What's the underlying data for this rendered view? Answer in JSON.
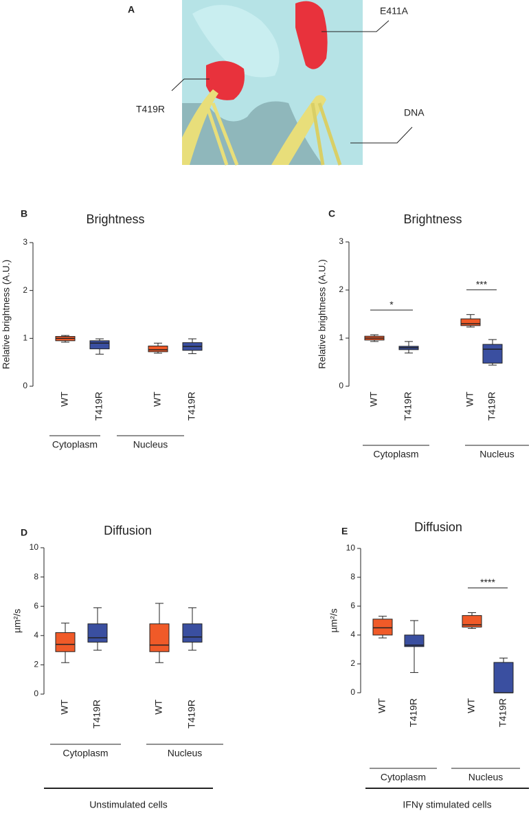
{
  "panel_a": {
    "letter": "A",
    "labels": [
      "E411A",
      "T419R",
      "DNA"
    ]
  },
  "chart_data": [
    {
      "type": "box",
      "panel": "B",
      "title": "Brightness",
      "ylabel": "Relative brightness (A.U.)",
      "ylim": [
        0,
        3
      ],
      "yticks": [
        0,
        1,
        2,
        3
      ],
      "categories": [
        "WT",
        "T419R",
        "WT",
        "T419R"
      ],
      "groups": [
        "Cytoplasm",
        "Nucleus"
      ],
      "boxes": [
        {
          "color": "#f05a28",
          "min": 0.92,
          "q1": 0.95,
          "median": 1.0,
          "q3": 1.04,
          "max": 1.06
        },
        {
          "color": "#3a4fa0",
          "min": 0.67,
          "q1": 0.78,
          "median": 0.9,
          "q3": 0.95,
          "max": 0.99
        },
        {
          "color": "#f05a28",
          "min": 0.69,
          "q1": 0.72,
          "median": 0.76,
          "q3": 0.84,
          "max": 0.9
        },
        {
          "color": "#3a4fa0",
          "min": 0.68,
          "q1": 0.75,
          "median": 0.83,
          "q3": 0.91,
          "max": 0.99
        }
      ]
    },
    {
      "type": "box",
      "panel": "C",
      "title": "Brightness",
      "ylabel": "Relative brightness (A.U.)",
      "ylim": [
        0,
        3
      ],
      "yticks": [
        0,
        1,
        2,
        3
      ],
      "categories": [
        "WT",
        "T419R",
        "WT",
        "T419R"
      ],
      "groups": [
        "Cytoplasm",
        "Nucleus"
      ],
      "significance": [
        "*",
        "***"
      ],
      "boxes": [
        {
          "color": "#f05a28",
          "min": 0.93,
          "q1": 0.96,
          "median": 1.0,
          "q3": 1.04,
          "max": 1.07
        },
        {
          "color": "#3a4fa0",
          "min": 0.69,
          "q1": 0.76,
          "median": 0.8,
          "q3": 0.83,
          "max": 0.93
        },
        {
          "color": "#f05a28",
          "min": 1.23,
          "q1": 1.26,
          "median": 1.3,
          "q3": 1.4,
          "max": 1.49
        },
        {
          "color": "#3a4fa0",
          "min": 0.44,
          "q1": 0.48,
          "median": 0.77,
          "q3": 0.87,
          "max": 0.97
        }
      ]
    },
    {
      "type": "box",
      "panel": "D",
      "title": "Diffusion",
      "ylabel": "µm²/s",
      "ylim": [
        0,
        10
      ],
      "yticks": [
        0,
        2,
        4,
        6,
        8,
        10
      ],
      "categories": [
        "WT",
        "T419R",
        "WT",
        "T419R"
      ],
      "groups": [
        "Cytoplasm",
        "Nucleus"
      ],
      "condition": "Unstimulated cells",
      "boxes": [
        {
          "color": "#f05a28",
          "min": 2.15,
          "q1": 2.9,
          "median": 3.4,
          "q3": 4.2,
          "max": 4.85
        },
        {
          "color": "#3a4fa0",
          "min": 3.0,
          "q1": 3.55,
          "median": 3.85,
          "q3": 4.8,
          "max": 5.9
        },
        {
          "color": "#f05a28",
          "min": 2.15,
          "q1": 2.9,
          "median": 3.35,
          "q3": 4.8,
          "max": 6.2
        },
        {
          "color": "#3a4fa0",
          "min": 3.0,
          "q1": 3.55,
          "median": 3.9,
          "q3": 4.8,
          "max": 5.9
        }
      ]
    },
    {
      "type": "box",
      "panel": "E",
      "title": "Diffusion",
      "ylabel": "µm²/s",
      "ylim": [
        0,
        10
      ],
      "yticks": [
        0,
        2,
        4,
        6,
        8,
        10
      ],
      "categories": [
        "WT",
        "T419R",
        "WT",
        "T419R"
      ],
      "groups": [
        "Cytoplasm",
        "Nucleus"
      ],
      "significance": [
        null,
        "****"
      ],
      "condition": "IFNγ stimulated cells",
      "boxes": [
        {
          "color": "#f05a28",
          "min": 3.8,
          "q1": 4.0,
          "median": 4.5,
          "q3": 5.1,
          "max": 5.3
        },
        {
          "color": "#3a4fa0",
          "min": 1.4,
          "q1": 3.2,
          "median": 3.3,
          "q3": 4.0,
          "max": 5.0
        },
        {
          "color": "#f05a28",
          "min": 4.45,
          "q1": 4.55,
          "median": 4.7,
          "q3": 5.35,
          "max": 5.55
        },
        {
          "color": "#3a4fa0",
          "min": 0,
          "q1": 0,
          "median": 0,
          "q3": 2.1,
          "max": 2.4
        }
      ]
    }
  ]
}
